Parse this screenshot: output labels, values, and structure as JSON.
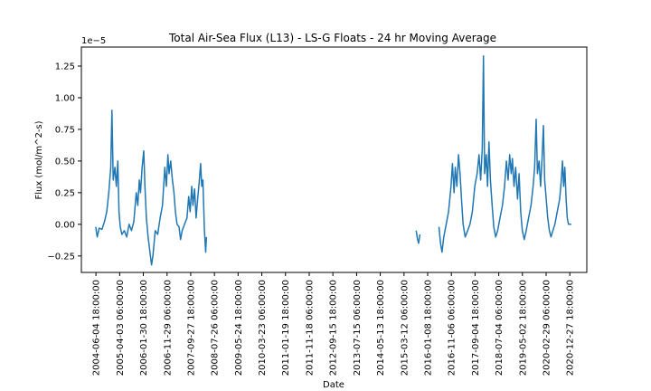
{
  "chart_data": {
    "type": "line",
    "title": "Total Air-Sea Flux (L13) - LS-G Floats - 24 hr Moving Average",
    "xlabel": "Date",
    "ylabel": "Flux (mol/m^2-s)",
    "y_scale_label": "1e−5",
    "y_multiplier": 1e-05,
    "ylim": [
      -0.38,
      1.4
    ],
    "y_ticks": [
      -0.25,
      0.0,
      0.25,
      0.5,
      0.75,
      1.0,
      1.25
    ],
    "y_tick_labels": [
      "−0.25",
      "0.00",
      "0.25",
      "0.50",
      "0.75",
      "1.00",
      "1.25"
    ],
    "xlim": [
      "2003-12-01",
      "2021-08-01"
    ],
    "x_tick_labels": [
      "2004-06-04 18:00:00",
      "2005-04-03 06:00:00",
      "2006-01-30 18:00:00",
      "2006-11-29 06:00:00",
      "2007-09-27 18:00:00",
      "2008-07-26 06:00:00",
      "2009-05-24 18:00:00",
      "2010-03-23 06:00:00",
      "2011-01-19 18:00:00",
      "2011-11-18 06:00:00",
      "2012-09-15 18:00:00",
      "2013-07-15 06:00:00",
      "2014-05-13 18:00:00",
      "2015-03-12 06:00:00",
      "2016-01-08 18:00:00",
      "2016-11-06 06:00:00",
      "2017-09-04 18:00:00",
      "2018-07-04 06:00:00",
      "2019-05-02 18:00:00",
      "2020-02-29 06:00:00",
      "2020-12-27 18:00:00"
    ],
    "grid": false,
    "color": "#1f77b4",
    "series": [
      {
        "points": [
          [
            "2004-06-01",
            -0.02
          ],
          [
            "2004-06-20",
            -0.1
          ],
          [
            "2004-07-15",
            -0.03
          ],
          [
            "2004-08-20",
            -0.04
          ],
          [
            "2004-09-20",
            0.02
          ],
          [
            "2004-10-20",
            0.1
          ],
          [
            "2004-11-15",
            0.25
          ],
          [
            "2004-12-10",
            0.45
          ],
          [
            "2004-12-25",
            0.9
          ],
          [
            "2005-01-10",
            0.35
          ],
          [
            "2005-02-01",
            0.45
          ],
          [
            "2005-02-20",
            0.3
          ],
          [
            "2005-03-10",
            0.5
          ],
          [
            "2005-03-25",
            0.1
          ],
          [
            "2005-04-10",
            -0.02
          ],
          [
            "2005-05-01",
            -0.08
          ],
          [
            "2005-06-01",
            -0.05
          ],
          [
            "2005-07-01",
            -0.1
          ],
          [
            "2005-08-01",
            0.0
          ],
          [
            "2005-09-01",
            -0.05
          ],
          [
            "2005-10-01",
            0.02
          ],
          [
            "2005-11-01",
            0.25
          ],
          [
            "2005-11-20",
            0.15
          ],
          [
            "2005-12-10",
            0.35
          ],
          [
            "2005-12-25",
            0.25
          ],
          [
            "2006-01-15",
            0.45
          ],
          [
            "2006-02-05",
            0.58
          ],
          [
            "2006-02-20",
            0.3
          ],
          [
            "2006-03-10",
            0.05
          ],
          [
            "2006-04-01",
            -0.1
          ],
          [
            "2006-04-20",
            -0.2
          ],
          [
            "2006-05-15",
            -0.32
          ],
          [
            "2006-06-01",
            -0.25
          ],
          [
            "2006-07-01",
            -0.05
          ],
          [
            "2006-08-01",
            -0.08
          ],
          [
            "2006-09-01",
            0.05
          ],
          [
            "2006-10-01",
            0.15
          ],
          [
            "2006-11-01",
            0.45
          ],
          [
            "2006-11-20",
            0.3
          ],
          [
            "2006-12-10",
            0.55
          ],
          [
            "2006-12-25",
            0.4
          ],
          [
            "2007-01-15",
            0.5
          ],
          [
            "2007-02-05",
            0.35
          ],
          [
            "2007-02-25",
            0.25
          ],
          [
            "2007-03-15",
            0.1
          ],
          [
            "2007-04-05",
            0.0
          ],
          [
            "2007-05-01",
            -0.02
          ],
          [
            "2007-05-20",
            -0.12
          ],
          [
            "2007-06-10",
            -0.05
          ],
          [
            "2007-07-10",
            0.0
          ],
          [
            "2007-08-10",
            0.05
          ],
          [
            "2007-09-01",
            0.22
          ],
          [
            "2007-09-20",
            0.1
          ],
          [
            "2007-10-10",
            0.3
          ],
          [
            "2007-10-25",
            0.15
          ],
          [
            "2007-11-15",
            0.28
          ],
          [
            "2007-12-05",
            0.05
          ],
          [
            "2007-12-25",
            0.2
          ],
          [
            "2008-01-15",
            0.35
          ],
          [
            "2008-02-01",
            0.48
          ],
          [
            "2008-02-15",
            0.3
          ],
          [
            "2008-03-01",
            0.35
          ],
          [
            "2008-03-20",
            -0.05
          ],
          [
            "2008-04-05",
            -0.22
          ],
          [
            "2008-04-15",
            -0.1
          ]
        ]
      },
      {
        "points": [
          [
            "2015-08-15",
            -0.05
          ],
          [
            "2015-09-01",
            -0.12
          ],
          [
            "2015-09-15",
            -0.15
          ],
          [
            "2015-10-01",
            -0.08
          ]
        ]
      },
      {
        "points": [
          [
            "2016-06-01",
            -0.02
          ],
          [
            "2016-06-20",
            -0.15
          ],
          [
            "2016-07-10",
            -0.22
          ],
          [
            "2016-08-01",
            -0.1
          ],
          [
            "2016-09-01",
            0.0
          ],
          [
            "2016-10-01",
            0.1
          ],
          [
            "2016-11-01",
            0.3
          ],
          [
            "2016-11-20",
            0.48
          ],
          [
            "2016-12-10",
            0.25
          ],
          [
            "2016-12-25",
            0.45
          ],
          [
            "2017-01-15",
            0.3
          ],
          [
            "2017-02-05",
            0.55
          ],
          [
            "2017-02-25",
            0.4
          ],
          [
            "2017-03-15",
            0.2
          ],
          [
            "2017-04-05",
            0.0
          ],
          [
            "2017-05-01",
            -0.1
          ],
          [
            "2017-06-01",
            -0.05
          ],
          [
            "2017-07-01",
            0.0
          ],
          [
            "2017-08-01",
            0.1
          ],
          [
            "2017-09-01",
            0.3
          ],
          [
            "2017-10-01",
            0.4
          ],
          [
            "2017-10-25",
            0.55
          ],
          [
            "2017-11-15",
            0.35
          ],
          [
            "2017-12-05",
            0.6
          ],
          [
            "2017-12-20",
            1.33
          ],
          [
            "2018-01-05",
            0.4
          ],
          [
            "2018-01-25",
            0.55
          ],
          [
            "2018-02-10",
            0.3
          ],
          [
            "2018-03-01",
            0.65
          ],
          [
            "2018-03-20",
            0.35
          ],
          [
            "2018-04-10",
            0.15
          ],
          [
            "2018-05-01",
            -0.02
          ],
          [
            "2018-05-25",
            -0.1
          ],
          [
            "2018-06-20",
            -0.05
          ],
          [
            "2018-07-20",
            0.05
          ],
          [
            "2018-08-20",
            0.15
          ],
          [
            "2018-09-15",
            0.3
          ],
          [
            "2018-10-10",
            0.5
          ],
          [
            "2018-11-01",
            0.35
          ],
          [
            "2018-11-20",
            0.55
          ],
          [
            "2018-12-10",
            0.4
          ],
          [
            "2018-12-25",
            0.52
          ],
          [
            "2019-01-15",
            0.3
          ],
          [
            "2019-02-05",
            0.45
          ],
          [
            "2019-03-01",
            0.2
          ],
          [
            "2019-03-20",
            0.4
          ],
          [
            "2019-04-10",
            0.1
          ],
          [
            "2019-05-01",
            -0.05
          ],
          [
            "2019-05-25",
            -0.12
          ],
          [
            "2019-06-20",
            -0.05
          ],
          [
            "2019-07-20",
            0.05
          ],
          [
            "2019-08-20",
            0.15
          ],
          [
            "2019-09-15",
            0.3
          ],
          [
            "2019-10-05",
            0.45
          ],
          [
            "2019-10-25",
            0.83
          ],
          [
            "2019-11-10",
            0.4
          ],
          [
            "2019-12-01",
            0.5
          ],
          [
            "2019-12-20",
            0.3
          ],
          [
            "2020-01-10",
            0.55
          ],
          [
            "2020-01-25",
            0.78
          ],
          [
            "2020-02-10",
            0.35
          ],
          [
            "2020-03-01",
            0.2
          ],
          [
            "2020-03-20",
            0.05
          ],
          [
            "2020-04-10",
            -0.05
          ],
          [
            "2020-05-01",
            -0.1
          ],
          [
            "2020-05-25",
            -0.05
          ],
          [
            "2020-06-20",
            0.0
          ],
          [
            "2020-07-20",
            0.1
          ],
          [
            "2020-08-20",
            0.2
          ],
          [
            "2020-09-10",
            0.35
          ],
          [
            "2020-09-25",
            0.5
          ],
          [
            "2020-10-10",
            0.3
          ],
          [
            "2020-10-25",
            0.45
          ],
          [
            "2020-11-10",
            0.2
          ],
          [
            "2020-11-25",
            0.05
          ],
          [
            "2020-12-10",
            0.0
          ],
          [
            "2021-01-15",
            0.0
          ]
        ]
      }
    ]
  }
}
